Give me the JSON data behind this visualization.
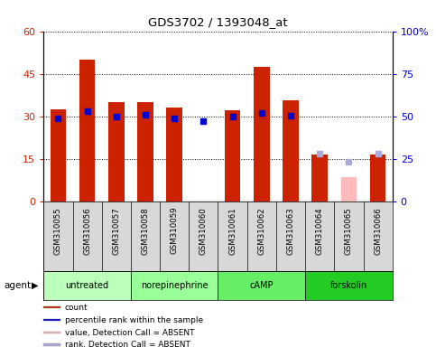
{
  "title": "GDS3702 / 1393048_at",
  "samples": [
    "GSM310055",
    "GSM310056",
    "GSM310057",
    "GSM310058",
    "GSM310059",
    "GSM310060",
    "GSM310061",
    "GSM310062",
    "GSM310063",
    "GSM310064",
    "GSM310065",
    "GSM310066"
  ],
  "count_values": [
    32.5,
    50.0,
    35.0,
    35.0,
    33.0,
    null,
    32.0,
    47.5,
    35.5,
    16.5,
    null,
    16.5
  ],
  "count_values_absent": [
    null,
    null,
    null,
    null,
    null,
    null,
    null,
    null,
    null,
    null,
    8.5,
    null
  ],
  "percentile_values": [
    49.0,
    53.0,
    50.0,
    51.0,
    49.0,
    47.0,
    50.0,
    52.0,
    50.5,
    null,
    null,
    null
  ],
  "percentile_values_absent": [
    null,
    null,
    null,
    null,
    null,
    null,
    null,
    null,
    null,
    28.0,
    23.0,
    28.0
  ],
  "agent_groups": [
    {
      "label": "untreated",
      "start": 0,
      "end": 3,
      "color": "#bbffbb"
    },
    {
      "label": "norepinephrine",
      "start": 3,
      "end": 6,
      "color": "#99ff99"
    },
    {
      "label": "cAMP",
      "start": 6,
      "end": 9,
      "color": "#66ee66"
    },
    {
      "label": "forskolin",
      "start": 9,
      "end": 12,
      "color": "#22cc22"
    }
  ],
  "ylim_left": [
    0,
    60
  ],
  "ylim_right": [
    0,
    100
  ],
  "yticks_left": [
    0,
    15,
    30,
    45,
    60
  ],
  "ytick_labels_left": [
    "0",
    "15",
    "30",
    "45",
    "60"
  ],
  "yticks_right": [
    0,
    25,
    50,
    75,
    100
  ],
  "ytick_labels_right": [
    "0",
    "25",
    "50",
    "75",
    "100%"
  ],
  "bar_color": "#cc2200",
  "bar_absent_color": "#ffbbbb",
  "dot_color": "#0000cc",
  "dot_absent_color": "#aaaadd",
  "legend_items": [
    {
      "color": "#cc2200",
      "label": "count"
    },
    {
      "color": "#0000cc",
      "label": "percentile rank within the sample"
    },
    {
      "color": "#ffbbbb",
      "label": "value, Detection Call = ABSENT"
    },
    {
      "color": "#aaaadd",
      "label": "rank, Detection Call = ABSENT"
    }
  ],
  "left_tick_color": "#cc2200",
  "right_tick_color": "#0000cc",
  "bg_color": "#d8d8d8",
  "agent_label": "agent",
  "bar_width": 0.55
}
